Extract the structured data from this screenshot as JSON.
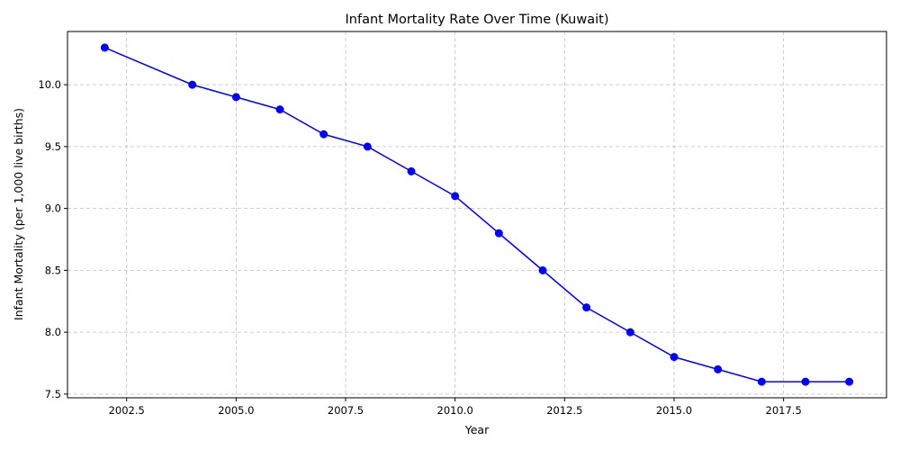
{
  "chart_data": {
    "type": "line",
    "title": "Infant Mortality Rate Over Time (Kuwait)",
    "xlabel": "Year",
    "ylabel": "Infant Mortality (per 1,000 live births)",
    "xlim": [
      2001.15,
      2019.85
    ],
    "ylim": [
      7.47,
      10.43
    ],
    "x_ticks": [
      2002.5,
      2005.0,
      2007.5,
      2010.0,
      2012.5,
      2015.0,
      2017.5
    ],
    "x_tick_labels": [
      "2002.5",
      "2005.0",
      "2007.5",
      "2010.0",
      "2012.5",
      "2015.0",
      "2017.5"
    ],
    "y_ticks": [
      7.5,
      8.0,
      8.5,
      9.0,
      9.5,
      10.0
    ],
    "y_tick_labels": [
      "7.5",
      "8.0",
      "8.5",
      "9.0",
      "9.5",
      "10.0"
    ],
    "grid": true,
    "series": [
      {
        "color": "#0000ff",
        "marker": "circle",
        "x": [
          2002,
          2004,
          2005,
          2006,
          2007,
          2008,
          2009,
          2010,
          2011,
          2012,
          2013,
          2014,
          2015,
          2016,
          2017,
          2018,
          2019
        ],
        "y": [
          10.3,
          10.0,
          9.9,
          9.8,
          9.6,
          9.5,
          9.3,
          9.1,
          8.8,
          8.5,
          8.2,
          8.0,
          7.8,
          7.7,
          7.6,
          7.6,
          7.6
        ]
      }
    ]
  }
}
